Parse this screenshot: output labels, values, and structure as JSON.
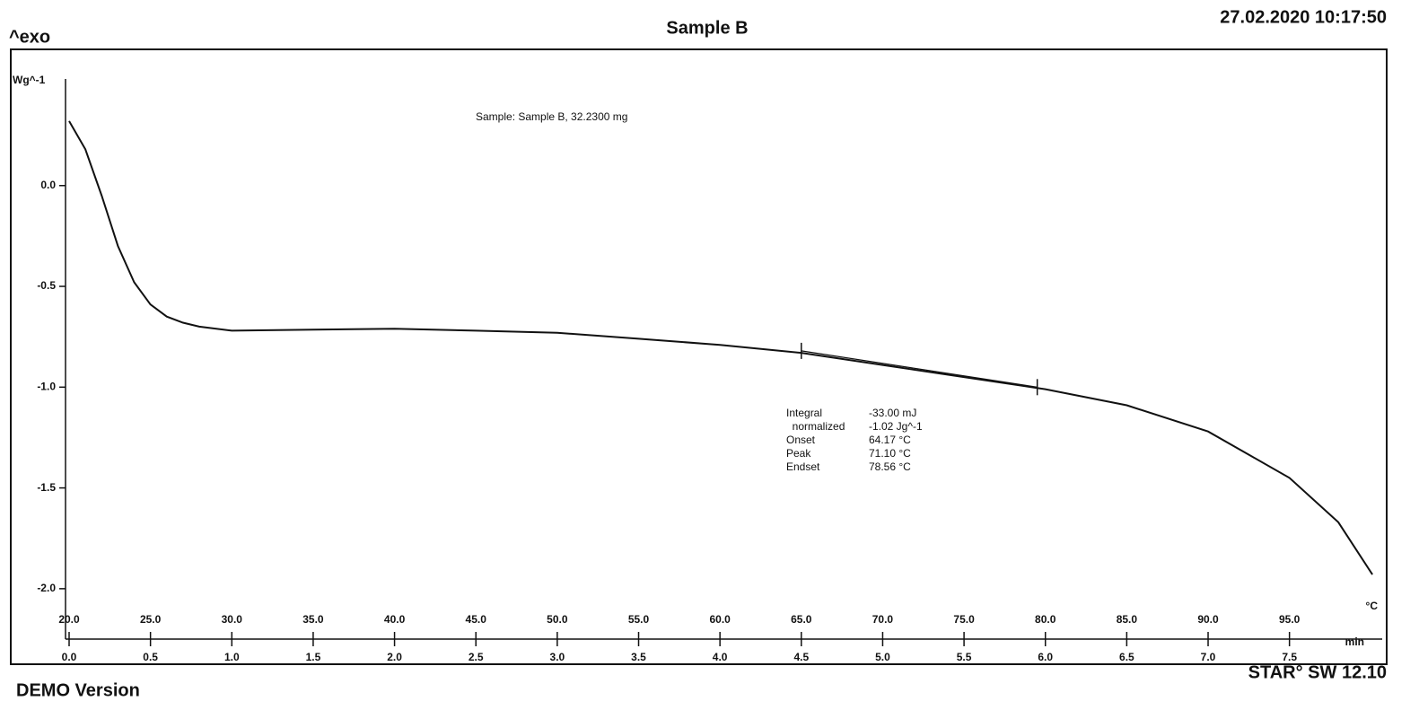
{
  "chart_data": {
    "type": "line",
    "title": "Sample B",
    "timestamp": "27.02.2020 10:17:50",
    "exo_label": "^exo",
    "ylabel": "Wg^-1",
    "sample_label": "Sample: Sample B, 32.2300 mg",
    "xlabel": "min",
    "x2label": "°C",
    "footer_left": "DEMO Version",
    "footer_right": "STAR° SW 12.10",
    "xlim": [
      0,
      8.07
    ],
    "x2lim": [
      20,
      100.7
    ],
    "ylim": [
      -2.25,
      0.52
    ],
    "yticks": [
      {
        "value": 0,
        "label": "0.0"
      },
      -0.5,
      {
        "value": -1,
        "label": "-1.0"
      },
      -1.5,
      {
        "value": -2,
        "label": "-2.0"
      }
    ],
    "xticks": [
      {
        "value": 0,
        "label": "0.0"
      },
      0.5,
      {
        "value": 1,
        "label": "1.0"
      },
      1.5,
      {
        "value": 2,
        "label": "2.0"
      },
      2.5,
      {
        "value": 3,
        "label": "3.0"
      },
      3.5,
      {
        "value": 4,
        "label": "4.0"
      },
      4.5,
      {
        "value": 5,
        "label": "5.0"
      },
      5.5,
      {
        "value": 6,
        "label": "6.0"
      },
      6.5,
      {
        "value": 7,
        "label": "7.0"
      },
      7.5
    ],
    "x2ticks": [
      {
        "value": 20,
        "label": "20.0"
      },
      {
        "value": 25,
        "label": "25.0"
      },
      {
        "value": 30,
        "label": "30.0"
      },
      {
        "value": 35,
        "label": "35.0"
      },
      {
        "value": 40,
        "label": "40.0"
      },
      {
        "value": 45,
        "label": "45.0"
      },
      {
        "value": 50,
        "label": "50.0"
      },
      {
        "value": 55,
        "label": "55.0"
      },
      {
        "value": 60,
        "label": "60.0"
      },
      {
        "value": 65,
        "label": "65.0"
      },
      {
        "value": 70,
        "label": "70.0"
      },
      {
        "value": 75,
        "label": "75.0"
      },
      {
        "value": 80,
        "label": "80.0"
      },
      {
        "value": 85,
        "label": "85.0"
      },
      {
        "value": 90,
        "label": "90.0"
      },
      {
        "value": 95,
        "label": "95.0"
      }
    ],
    "series": [
      {
        "color": "#111111",
        "x": [
          0,
          0.1,
          0.2,
          0.3,
          0.4,
          0.5,
          0.6,
          0.7,
          0.8,
          1.0,
          1.5,
          2.0,
          2.5,
          3.0,
          3.5,
          4.0,
          4.5,
          5.0,
          5.5,
          6.0,
          6.5,
          7.0,
          7.5,
          7.8,
          8.01
        ],
        "values": [
          0.32,
          0.18,
          -0.05,
          -0.3,
          -0.48,
          -0.59,
          -0.65,
          -0.68,
          -0.7,
          -0.72,
          -0.715,
          -0.71,
          -0.72,
          -0.73,
          -0.76,
          -0.79,
          -0.83,
          -0.89,
          -0.95,
          -1.01,
          -1.09,
          -1.22,
          -1.45,
          -1.67,
          -1.93
        ]
      },
      {
        "color": "#111111",
        "x": [
          4.5,
          5.95
        ],
        "values": [
          -0.82,
          -1.0
        ]
      }
    ],
    "annotations": [
      [
        "Integral",
        "-33.00 mJ"
      ],
      [
        "  normalized",
        "-1.02 Jg^-1"
      ],
      [
        "Onset",
        "64.17 °C"
      ],
      [
        "Peak",
        "71.10 °C"
      ],
      [
        "Endset",
        "78.56 °C"
      ]
    ]
  }
}
